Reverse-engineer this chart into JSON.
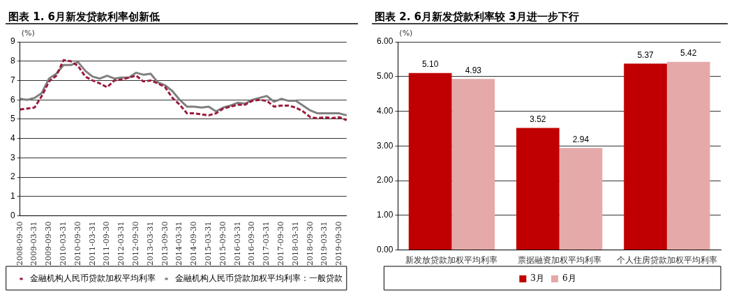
{
  "chart_data": [
    {
      "type": "line",
      "title": "图表 1. 6月新发贷款利率创新低",
      "ylabel": "(%)",
      "categories": [
        "2008-09-30",
        null,
        "2009-03-31",
        null,
        "2009-09-30",
        null,
        "2010-03-31",
        null,
        "2010-09-30",
        null,
        "2011-03-31",
        null,
        "2011-09-30",
        null,
        "2012-03-31",
        null,
        "2012-09-30",
        null,
        "2013-03-31",
        null,
        "2013-09-30",
        null,
        "2014-03-31",
        null,
        "2014-09-30",
        null,
        "2015-03-31",
        null,
        "2015-09-30",
        null,
        "2016-03-31",
        null,
        "2016-09-30",
        null,
        "2017-03-31",
        null,
        "2017-09-30",
        null,
        "2018-03-31",
        null,
        "2018-09-30",
        null,
        "2019-03-31",
        null,
        "2019-09-30",
        null
      ],
      "series": [
        {
          "name": "金融机构人民币贷款加权平均利率",
          "color": "#9b1b3b",
          "line_style": "dashed",
          "values": [
            5.5,
            5.55,
            5.6,
            6.2,
            6.95,
            7.25,
            8.05,
            8.0,
            7.75,
            7.2,
            7.0,
            6.85,
            6.65,
            7.0,
            7.05,
            7.15,
            7.25,
            6.95,
            7.0,
            6.85,
            6.65,
            6.1,
            5.75,
            5.3,
            5.3,
            5.25,
            5.2,
            5.3,
            5.55,
            5.65,
            5.75,
            5.75,
            5.95,
            6.0,
            5.95,
            5.65,
            5.7,
            5.7,
            5.6,
            5.4,
            5.1,
            5.05,
            5.1,
            5.05,
            5.1,
            4.95
          ]
        },
        {
          "name": "金融机构人民币贷款加权平均利率：一般贷款",
          "color": "#808080",
          "line_style": "solid",
          "values": [
            6.05,
            6.0,
            6.1,
            6.35,
            7.1,
            7.35,
            7.8,
            7.8,
            7.95,
            7.5,
            7.2,
            7.1,
            7.25,
            7.1,
            7.15,
            7.15,
            7.4,
            7.3,
            7.35,
            6.9,
            6.75,
            6.45,
            6.0,
            5.65,
            5.65,
            5.6,
            5.65,
            5.4,
            5.6,
            5.7,
            5.85,
            5.8,
            6.0,
            6.1,
            6.2,
            5.9,
            6.05,
            5.95,
            5.95,
            5.7,
            5.45,
            5.3,
            5.3,
            5.3,
            5.3,
            5.2
          ]
        }
      ],
      "ylim": [
        0,
        9
      ],
      "yticks": [
        0,
        1,
        2,
        3,
        4,
        5,
        6,
        7,
        8,
        9
      ],
      "grid": "y",
      "marker": "none",
      "legend": "bottom"
    },
    {
      "type": "bar",
      "title": "图表 2. 6月新发贷款利率较 3月进一步下行",
      "ylabel": "(%)",
      "categories": [
        "新发放贷款加权平均利率",
        "票据融资加权平均利率",
        "个人住房贷款加权平均利率"
      ],
      "series": [
        {
          "name": "3月",
          "color": "#c00000",
          "values": [
            5.1,
            3.52,
            5.37
          ],
          "value_labels": [
            "5.10",
            "3.52",
            "5.37"
          ]
        },
        {
          "name": "6月",
          "color": "#e6a9a9",
          "values": [
            4.93,
            2.94,
            5.42
          ],
          "value_labels": [
            "4.93",
            "2.94",
            "5.42"
          ]
        }
      ],
      "ylim": [
        0,
        6
      ],
      "yticks": [
        {
          "value": 0,
          "label": "0.00"
        },
        {
          "value": 1,
          "label": "1.00"
        },
        {
          "value": 2,
          "label": "2.00"
        },
        {
          "value": 3,
          "label": "3.00"
        },
        {
          "value": 4,
          "label": "4.00"
        },
        {
          "value": 5,
          "label": "5.00"
        },
        {
          "value": 6,
          "label": "6.00"
        }
      ],
      "grid": "y",
      "legend": "bottom"
    }
  ]
}
